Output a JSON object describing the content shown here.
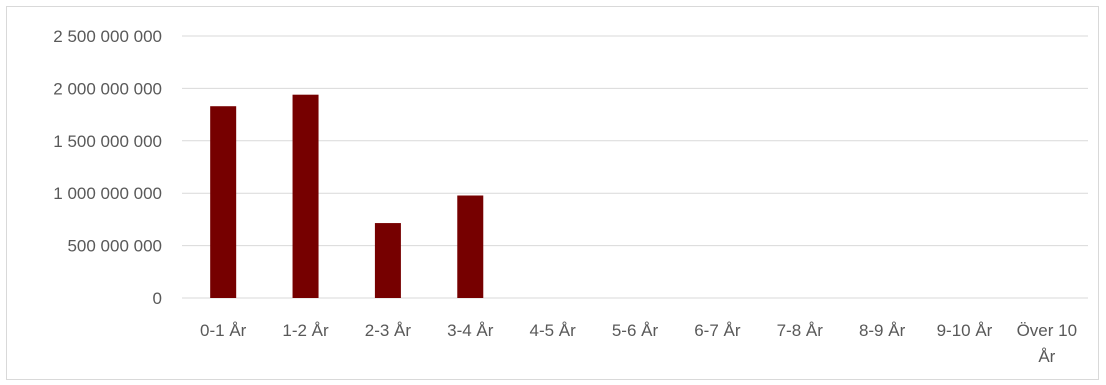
{
  "chart_data": {
    "type": "bar",
    "categories": [
      "0-1 År",
      "1-2 År",
      "2-3 År",
      "3-4 År",
      "4-5 År",
      "5-6 År",
      "6-7 År",
      "7-8 År",
      "8-9 År",
      "9-10 År",
      "Över 10 År"
    ],
    "values": [
      1830000000,
      1940000000,
      715000000,
      978000000,
      0,
      0,
      0,
      0,
      0,
      0,
      0
    ],
    "title": "",
    "xlabel": "",
    "ylabel": "",
    "ylim": [
      0,
      2500000000
    ],
    "yticks": [
      0,
      500000000,
      1000000000,
      1500000000,
      2000000000,
      2500000000
    ],
    "ytick_labels": [
      "0",
      "500 000 000",
      "1 000 000 000",
      "1 500 000 000",
      "2 000 000 000",
      "2 500 000 000"
    ],
    "grid": true,
    "legend": "none",
    "bar_color": "#760000",
    "grid_color": "#d9d9d9"
  }
}
